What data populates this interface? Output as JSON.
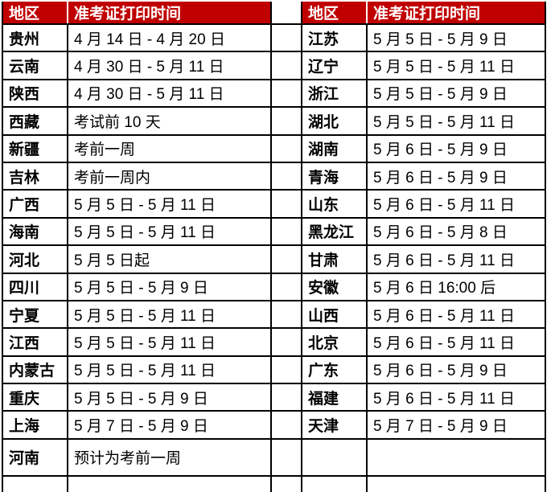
{
  "table": {
    "header": {
      "region_label": "地区",
      "time_label": "准考证打印时间",
      "header_bg": "#c00000",
      "header_text_color": "#ffffff",
      "border_color": "#000000",
      "body_text_color": "#000000"
    },
    "rows": [
      {
        "left_region": "贵州",
        "left_time": "4 月 14 日 - 4 月 20 日",
        "right_region": "江苏",
        "right_time": "5 月 5 日 - 5 月 9 日"
      },
      {
        "left_region": "云南",
        "left_time": "4 月 30 日 - 5 月 11 日",
        "right_region": "辽宁",
        "right_time": "5 月 5 日 - 5 月 11 日"
      },
      {
        "left_region": "陕西",
        "left_time": "4 月 30 日 - 5 月 11 日",
        "right_region": "浙江",
        "right_time": "5 月 5 日 - 5 月 9 日"
      },
      {
        "left_region": "西藏",
        "left_time": "考试前 10 天",
        "right_region": "湖北",
        "right_time": "5 月 5 日 - 5 月 11 日"
      },
      {
        "left_region": "新疆",
        "left_time": "考前一周",
        "right_region": "湖南",
        "right_time": "5 月 6 日 - 5 月 9 日"
      },
      {
        "left_region": "吉林",
        "left_time": "考前一周内",
        "right_region": "青海",
        "right_time": "5 月 6 日 - 5 月 9 日"
      },
      {
        "left_region": "广西",
        "left_time": "5 月 5 日 - 5 月 11 日",
        "right_region": "山东",
        "right_time": "5 月 6 日 - 5 月 11 日"
      },
      {
        "left_region": "海南",
        "left_time": "5 月 5 日 - 5 月 11 日",
        "right_region": "黑龙江",
        "right_time": "5 月 6 日 - 5 月 8 日"
      },
      {
        "left_region": "河北",
        "left_time": "5 月 5 日起",
        "right_region": "甘肃",
        "right_time": "5 月 6 日 - 5 月 11 日"
      },
      {
        "left_region": "四川",
        "left_time": "5 月 5 日 - 5 月 9 日",
        "right_region": "安徽",
        "right_time": "5 月 6 日 16:00 后"
      },
      {
        "left_region": "宁夏",
        "left_time": "5 月 5 日 - 5 月 11 日",
        "right_region": "山西",
        "right_time": "5 月 6 日 - 5 月 11 日"
      },
      {
        "left_region": "江西",
        "left_time": "5 月 5 日 - 5 月 11 日",
        "right_region": "北京",
        "right_time": "5 月 6 日 - 5 月 11 日"
      },
      {
        "left_region": "内蒙古",
        "left_time": "5 月 5 日 - 5 月 11 日",
        "right_region": "广东",
        "right_time": "5 月 6 日 - 5 月 9 日"
      },
      {
        "left_region": "重庆",
        "left_time": "5 月 5 日 - 5 月 9 日",
        "right_region": "福建",
        "right_time": "5 月 6 日 - 5 月 11 日"
      },
      {
        "left_region": "上海",
        "left_time": "5 月 7 日 - 5 月 9 日",
        "right_region": "天津",
        "right_time": "5 月 7 日 - 5 月 9 日"
      },
      {
        "left_region": "河南",
        "left_time": "预计为考前一周",
        "right_region": "",
        "right_time": ""
      }
    ]
  }
}
